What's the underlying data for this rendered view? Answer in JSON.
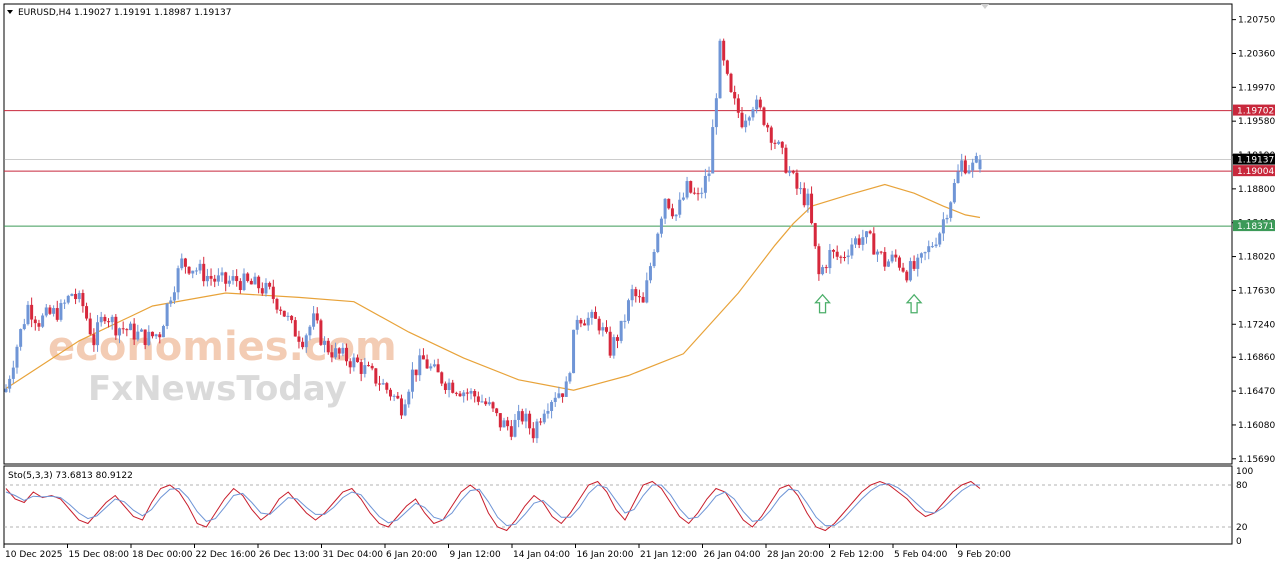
{
  "header": {
    "symbol_line": "EURUSD,H4  1.19027 1.19191 1.18987 1.19137"
  },
  "watermark": {
    "line1": "economies.com",
    "line2": "FxNewsToday"
  },
  "colors": {
    "bull": "#6f95d6",
    "bear": "#d6283c",
    "ma": "#e8a33a",
    "resistance": "#c8283c",
    "support": "#3c9a58",
    "current": "#9a9a9a",
    "stoch_main": "#c81e2c",
    "stoch_signal": "#6f95d6",
    "arrow": "#4caf6a"
  },
  "chart_data": [
    {
      "type": "candlestick",
      "symbol": "EURUSD",
      "timeframe": "H4",
      "ohlc_header": {
        "open": 1.19027,
        "high": 1.19191,
        "low": 1.18987,
        "close": 1.19137
      },
      "y_ticks": [
        "1.20750",
        "1.20360",
        "1.19970",
        "1.19580",
        "1.19190",
        "1.18800",
        "1.18410",
        "1.18020",
        "1.17630",
        "1.17240",
        "1.16860",
        "1.16470",
        "1.16080",
        "1.15690"
      ],
      "ylim": [
        1.1563,
        1.2093
      ],
      "x_ticks": [
        "10 Dec 2025",
        "15 Dec 08:00",
        "18 Dec 00:00",
        "22 Dec 16:00",
        "26 Dec 13:00",
        "31 Dec 04:00",
        "6 Jan 20:00",
        "9 Jan 12:00",
        "14 Jan 04:00",
        "16 Jan 20:00",
        "21 Jan 12:00",
        "26 Jan 04:00",
        "28 Jan 20:00",
        "2 Feb 12:00",
        "5 Feb 04:00",
        "9 Feb 20:00"
      ],
      "close_path": [
        [
          0,
          1.165
        ],
        [
          3,
          1.17
        ],
        [
          6,
          1.1745
        ],
        [
          9,
          1.1728
        ],
        [
          12,
          1.1735
        ],
        [
          15,
          1.174
        ],
        [
          18,
          1.176
        ],
        [
          21,
          1.1745
        ],
        [
          24,
          1.1705
        ],
        [
          27,
          1.1738
        ],
        [
          30,
          1.1722
        ],
        [
          33,
          1.1718
        ],
        [
          36,
          1.1712
        ],
        [
          39,
          1.1708
        ],
        [
          42,
          1.1715
        ],
        [
          45,
          1.176
        ],
        [
          48,
          1.1795
        ],
        [
          51,
          1.179
        ],
        [
          54,
          1.1782
        ],
        [
          57,
          1.1775
        ],
        [
          60,
          1.1772
        ],
        [
          63,
          1.1775
        ],
        [
          66,
          1.177
        ],
        [
          69,
          1.1768
        ],
        [
          72,
          1.176
        ],
        [
          75,
          1.1745
        ],
        [
          78,
          1.172
        ],
        [
          81,
          1.1708
        ],
        [
          84,
          1.1728
        ],
        [
          87,
          1.17
        ],
        [
          90,
          1.169
        ],
        [
          93,
          1.1685
        ],
        [
          96,
          1.1678
        ],
        [
          99,
          1.1668
        ],
        [
          102,
          1.1658
        ],
        [
          105,
          1.1645
        ],
        [
          108,
          1.163
        ],
        [
          111,
          1.1668
        ],
        [
          114,
          1.1682
        ],
        [
          117,
          1.1668
        ],
        [
          120,
          1.1658
        ],
        [
          123,
          1.1652
        ],
        [
          126,
          1.1645
        ],
        [
          129,
          1.164
        ],
        [
          132,
          1.1628
        ],
        [
          135,
          1.161
        ],
        [
          138,
          1.1605
        ],
        [
          141,
          1.1618
        ],
        [
          144,
          1.16
        ],
        [
          147,
          1.163
        ],
        [
          150,
          1.1645
        ],
        [
          153,
          1.165
        ],
        [
          156,
          1.1735
        ],
        [
          159,
          1.173
        ],
        [
          162,
          1.1725
        ],
        [
          165,
          1.1695
        ],
        [
          168,
          1.1718
        ],
        [
          171,
          1.176
        ],
        [
          174,
          1.1745
        ],
        [
          177,
          1.1815
        ],
        [
          180,
          1.1872
        ],
        [
          183,
          1.185
        ],
        [
          186,
          1.188
        ],
        [
          189,
          1.1868
        ],
        [
          192,
          1.19
        ],
        [
          195,
          1.204
        ],
        [
          198,
          1.1985
        ],
        [
          201,
          1.196
        ],
        [
          204,
          1.198
        ],
        [
          207,
          1.1962
        ],
        [
          210,
          1.1935
        ],
        [
          213,
          1.1908
        ],
        [
          216,
          1.188
        ],
        [
          219,
          1.1865
        ],
        [
          222,
          1.178
        ],
        [
          225,
          1.1805
        ],
        [
          228,
          1.18
        ],
        [
          231,
          1.1818
        ],
        [
          234,
          1.1825
        ],
        [
          237,
          1.1815
        ],
        [
          240,
          1.1795
        ],
        [
          243,
          1.18
        ],
        [
          246,
          1.1785
        ],
        [
          249,
          1.179
        ],
        [
          252,
          1.181
        ],
        [
          255,
          1.1832
        ],
        [
          258,
          1.187
        ],
        [
          261,
          1.191
        ],
        [
          264,
          1.1905
        ],
        [
          266,
          1.1914
        ]
      ],
      "moving_average_path": [
        [
          0,
          1.165
        ],
        [
          20,
          1.1705
        ],
        [
          40,
          1.1745
        ],
        [
          60,
          1.176
        ],
        [
          80,
          1.1755
        ],
        [
          95,
          1.175
        ],
        [
          110,
          1.1715
        ],
        [
          125,
          1.1685
        ],
        [
          140,
          1.166
        ],
        [
          155,
          1.1648
        ],
        [
          170,
          1.1665
        ],
        [
          185,
          1.169
        ],
        [
          200,
          1.176
        ],
        [
          210,
          1.1815
        ],
        [
          215,
          1.184
        ],
        [
          220,
          1.186
        ],
        [
          230,
          1.1873
        ],
        [
          240,
          1.1885
        ],
        [
          248,
          1.1875
        ],
        [
          256,
          1.186
        ],
        [
          262,
          1.185
        ],
        [
          266,
          1.1847
        ]
      ],
      "horizontal_levels": [
        {
          "label": "1.19702",
          "value": 1.19702,
          "kind": "resistance"
        },
        {
          "label": "1.19004",
          "value": 1.19004,
          "kind": "resistance"
        },
        {
          "label": "1.18371",
          "value": 1.18371,
          "kind": "support"
        },
        {
          "label": "1.19137",
          "value": 1.19137,
          "kind": "current_price"
        }
      ],
      "annotations": [
        {
          "type": "up-arrow",
          "bar_index": 223,
          "price": 1.1758
        },
        {
          "type": "up-arrow",
          "bar_index": 248,
          "price": 1.1758
        }
      ]
    },
    {
      "type": "line",
      "title": "Sto(5,3,3) 73.6813 80.9122",
      "ylim": [
        0,
        100
      ],
      "y_ticks": [
        "100",
        "80",
        "20",
        "0"
      ],
      "levels": [
        80,
        20
      ],
      "series": [
        {
          "role": "main",
          "values": [
            75,
            60,
            55,
            70,
            62,
            65,
            60,
            45,
            30,
            25,
            40,
            55,
            65,
            50,
            35,
            30,
            55,
            75,
            80,
            70,
            50,
            25,
            20,
            40,
            60,
            75,
            65,
            45,
            30,
            40,
            60,
            70,
            55,
            40,
            30,
            40,
            55,
            70,
            75,
            60,
            40,
            25,
            20,
            35,
            50,
            60,
            40,
            25,
            30,
            50,
            70,
            80,
            70,
            40,
            20,
            15,
            30,
            50,
            65,
            55,
            35,
            25,
            40,
            60,
            80,
            85,
            70,
            45,
            30,
            55,
            80,
            85,
            75,
            55,
            35,
            25,
            40,
            60,
            75,
            70,
            50,
            30,
            20,
            35,
            55,
            75,
            80,
            65,
            40,
            20,
            15,
            25,
            40,
            55,
            70,
            80,
            85,
            80,
            70,
            60,
            45,
            35,
            40,
            55,
            70,
            80,
            85,
            75
          ]
        },
        {
          "role": "signal",
          "values": [
            70,
            65,
            58,
            64,
            63,
            64,
            62,
            52,
            40,
            32,
            36,
            48,
            60,
            56,
            44,
            36,
            45,
            62,
            74,
            75,
            62,
            42,
            28,
            32,
            48,
            65,
            68,
            55,
            40,
            38,
            50,
            62,
            60,
            48,
            38,
            38,
            48,
            62,
            70,
            66,
            50,
            35,
            26,
            30,
            42,
            54,
            48,
            34,
            30,
            40,
            58,
            72,
            74,
            56,
            34,
            22,
            24,
            38,
            54,
            58,
            46,
            34,
            34,
            48,
            68,
            80,
            76,
            58,
            40,
            45,
            65,
            80,
            80,
            66,
            46,
            32,
            34,
            48,
            64,
            70,
            60,
            42,
            28,
            30,
            44,
            62,
            74,
            72,
            54,
            34,
            22,
            22,
            32,
            46,
            60,
            72,
            80,
            82,
            76,
            66,
            54,
            42,
            40,
            48,
            60,
            72,
            80,
            80
          ]
        }
      ]
    }
  ]
}
